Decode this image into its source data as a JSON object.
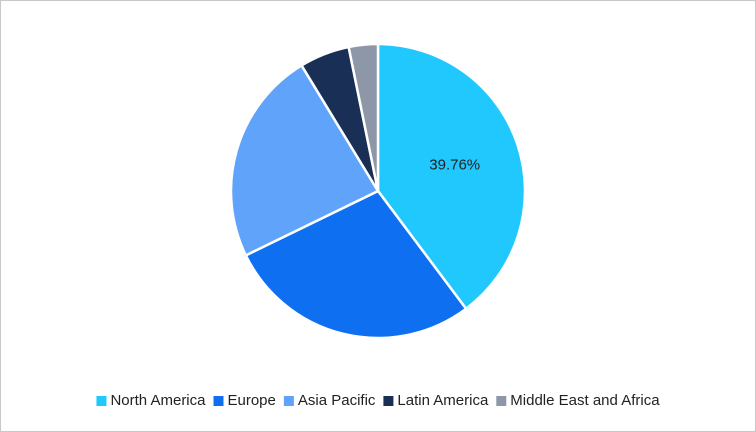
{
  "chart_data": {
    "type": "pie",
    "categories": [
      "North America",
      "Europe",
      "Asia Pacific",
      "Latin America",
      "Middle East and Africa"
    ],
    "values": [
      39.76,
      28,
      23.5,
      5.5,
      3.2
    ],
    "value_labels": [
      "39.76%",
      null,
      null,
      null,
      null
    ],
    "colors": [
      "#21c8fd",
      "#0e6ff0",
      "#60a3fb",
      "#1a2f55",
      "#8e97a8"
    ],
    "legend": "bottom"
  }
}
